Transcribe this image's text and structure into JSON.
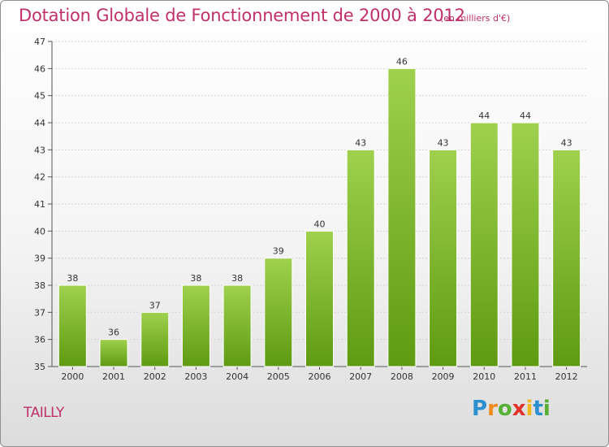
{
  "header": {
    "title": "Dotation Globale de Fonctionnement de 2000 à 2012",
    "subtitle": "(en milliers d'€)"
  },
  "footer": {
    "commune": "TAILLY",
    "logo": [
      "P",
      "r",
      "o",
      "x",
      "i",
      "t",
      "i"
    ]
  },
  "colors": {
    "title": "#c0306a",
    "bar_top": "#9fd14e",
    "bar_bottom": "#5e9a12",
    "grid": "#d4d4d4"
  },
  "chart_data": {
    "type": "bar",
    "title": "Dotation Globale de Fonctionnement de 2000 à 2012",
    "subtitle": "(en milliers d'€)",
    "categories": [
      "2000",
      "2001",
      "2002",
      "2003",
      "2004",
      "2005",
      "2006",
      "2007",
      "2008",
      "2009",
      "2010",
      "2011",
      "2012"
    ],
    "values": [
      38,
      36,
      37,
      38,
      38,
      39,
      40,
      43,
      46,
      43,
      44,
      44,
      43
    ],
    "ylim": [
      35,
      47
    ],
    "yticks": [
      35,
      36,
      37,
      38,
      39,
      40,
      41,
      42,
      43,
      44,
      45,
      46,
      47
    ],
    "grid": true,
    "legend": "none"
  }
}
